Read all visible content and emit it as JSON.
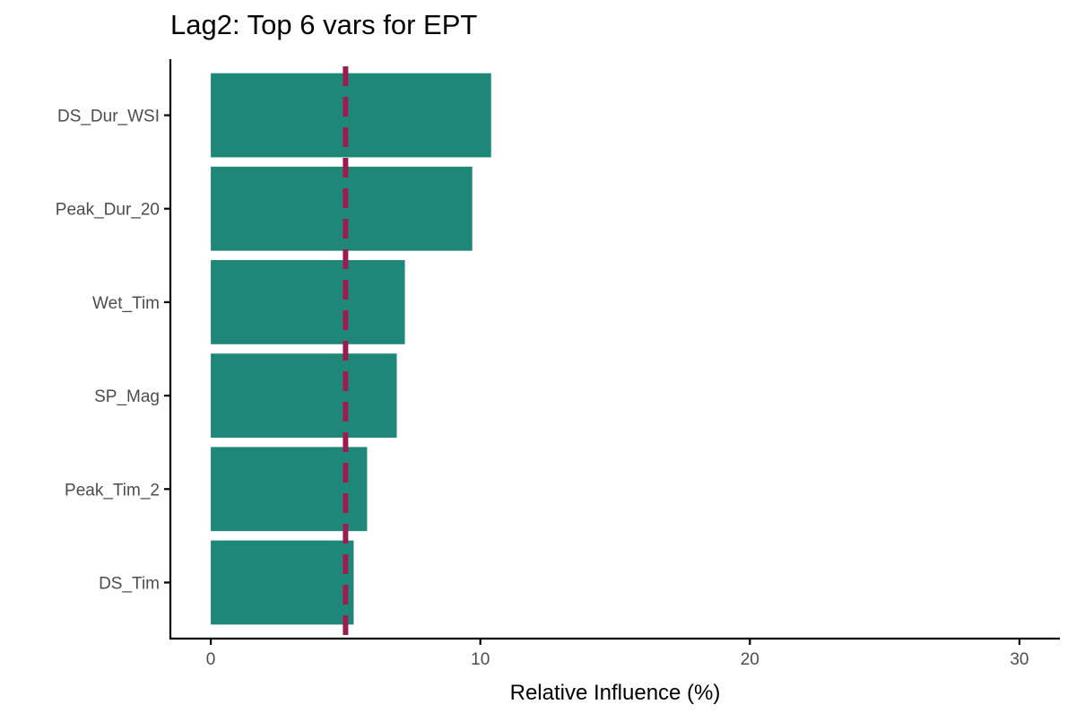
{
  "chart_data": {
    "type": "bar",
    "orientation": "horizontal",
    "title": "Lag2: Top 6 vars for EPT",
    "xlabel": "Relative Influence (%)",
    "ylabel": "",
    "categories": [
      "DS_Dur_WSI",
      "Peak_Dur_20",
      "Wet_Tim",
      "SP_Mag",
      "Peak_Tim_2",
      "DS_Tim"
    ],
    "values": [
      10.4,
      9.7,
      7.2,
      6.9,
      5.8,
      5.3
    ],
    "xlim": [
      -1.5,
      31.5
    ],
    "xticks": [
      0,
      10,
      20,
      30
    ],
    "reference_line": {
      "value": 5,
      "style": "dashed"
    },
    "grid": false,
    "legend": "none",
    "colors": {
      "bar": "#1f8778",
      "reference_line": "#9b1d50",
      "axis": "#000000",
      "tick_label": "#4d4d4d"
    }
  }
}
